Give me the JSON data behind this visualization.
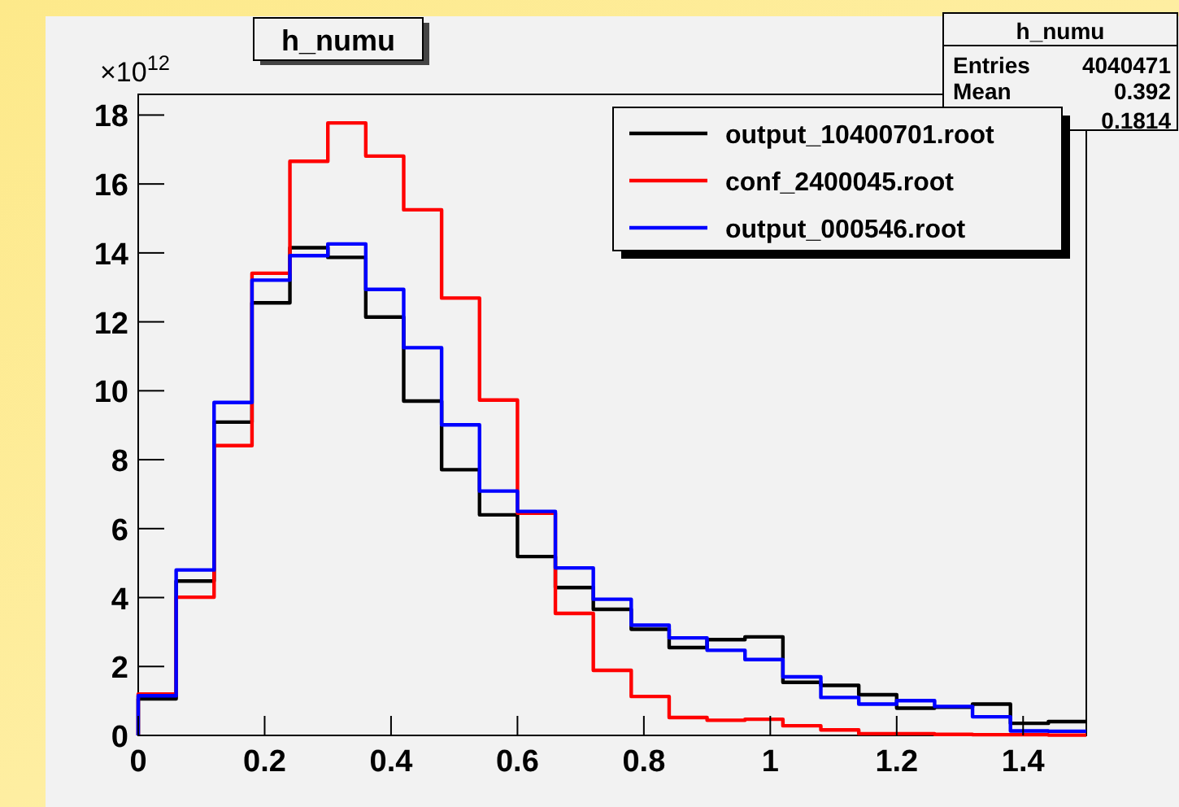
{
  "chart_data": {
    "type": "histogram",
    "title": "h_numu",
    "ylabel": "×10$^{12}$",
    "annotations": [
      "h_numu",
      "Entries",
      "4040471",
      "Mean",
      "0.392",
      "0.1814"
    ],
    "bins": [
      0,
      0.06,
      0.12,
      0.18,
      0.24,
      0.3,
      0.36,
      0.42,
      0.48,
      0.54,
      0.6,
      0.66,
      0.72,
      0.78,
      0.84,
      0.9,
      0.96,
      1.02,
      1.08,
      1.14,
      1.2,
      1.26,
      1.32,
      1.38,
      1.44,
      1.5
    ],
    "series": [
      {
        "name": "output_10400701.root",
        "color": "#000000",
        "values": [
          1.06,
          4.48,
          9.09,
          12.55,
          14.15,
          13.87,
          12.14,
          9.7,
          7.71,
          6.4,
          5.19,
          4.29,
          3.66,
          3.08,
          2.55,
          2.78,
          2.86,
          1.54,
          1.45,
          1.18,
          0.79,
          0.82,
          0.91,
          0.35,
          0.4
        ]
      },
      {
        "name": "conf_2400045.root",
        "color": "#ff0000",
        "values": [
          1.2,
          4.01,
          8.41,
          13.41,
          16.66,
          17.77,
          16.81,
          15.25,
          12.69,
          9.73,
          6.45,
          3.54,
          1.89,
          1.13,
          0.52,
          0.44,
          0.47,
          0.28,
          0.16,
          0.05,
          0.05,
          0.03,
          0.02,
          0.02,
          0.01
        ]
      },
      {
        "name": "output_000546.root",
        "color": "#0000ff",
        "values": [
          1.15,
          4.8,
          9.66,
          13.21,
          13.92,
          14.26,
          12.94,
          11.25,
          9.01,
          7.09,
          6.5,
          4.86,
          3.95,
          3.2,
          2.83,
          2.47,
          2.2,
          1.7,
          1.1,
          0.91,
          1.01,
          0.84,
          0.54,
          0.13,
          0.12
        ]
      }
    ],
    "xlim": [
      0,
      1.5
    ],
    "ylim": [
      0,
      18.6
    ],
    "xticks": [
      0,
      0.2,
      0.4,
      0.6,
      0.8,
      1,
      1.2,
      1.4
    ],
    "yticks": [
      0,
      2,
      4,
      6,
      8,
      10,
      12,
      14,
      16,
      18
    ],
    "grid": false,
    "legend": "top right"
  }
}
